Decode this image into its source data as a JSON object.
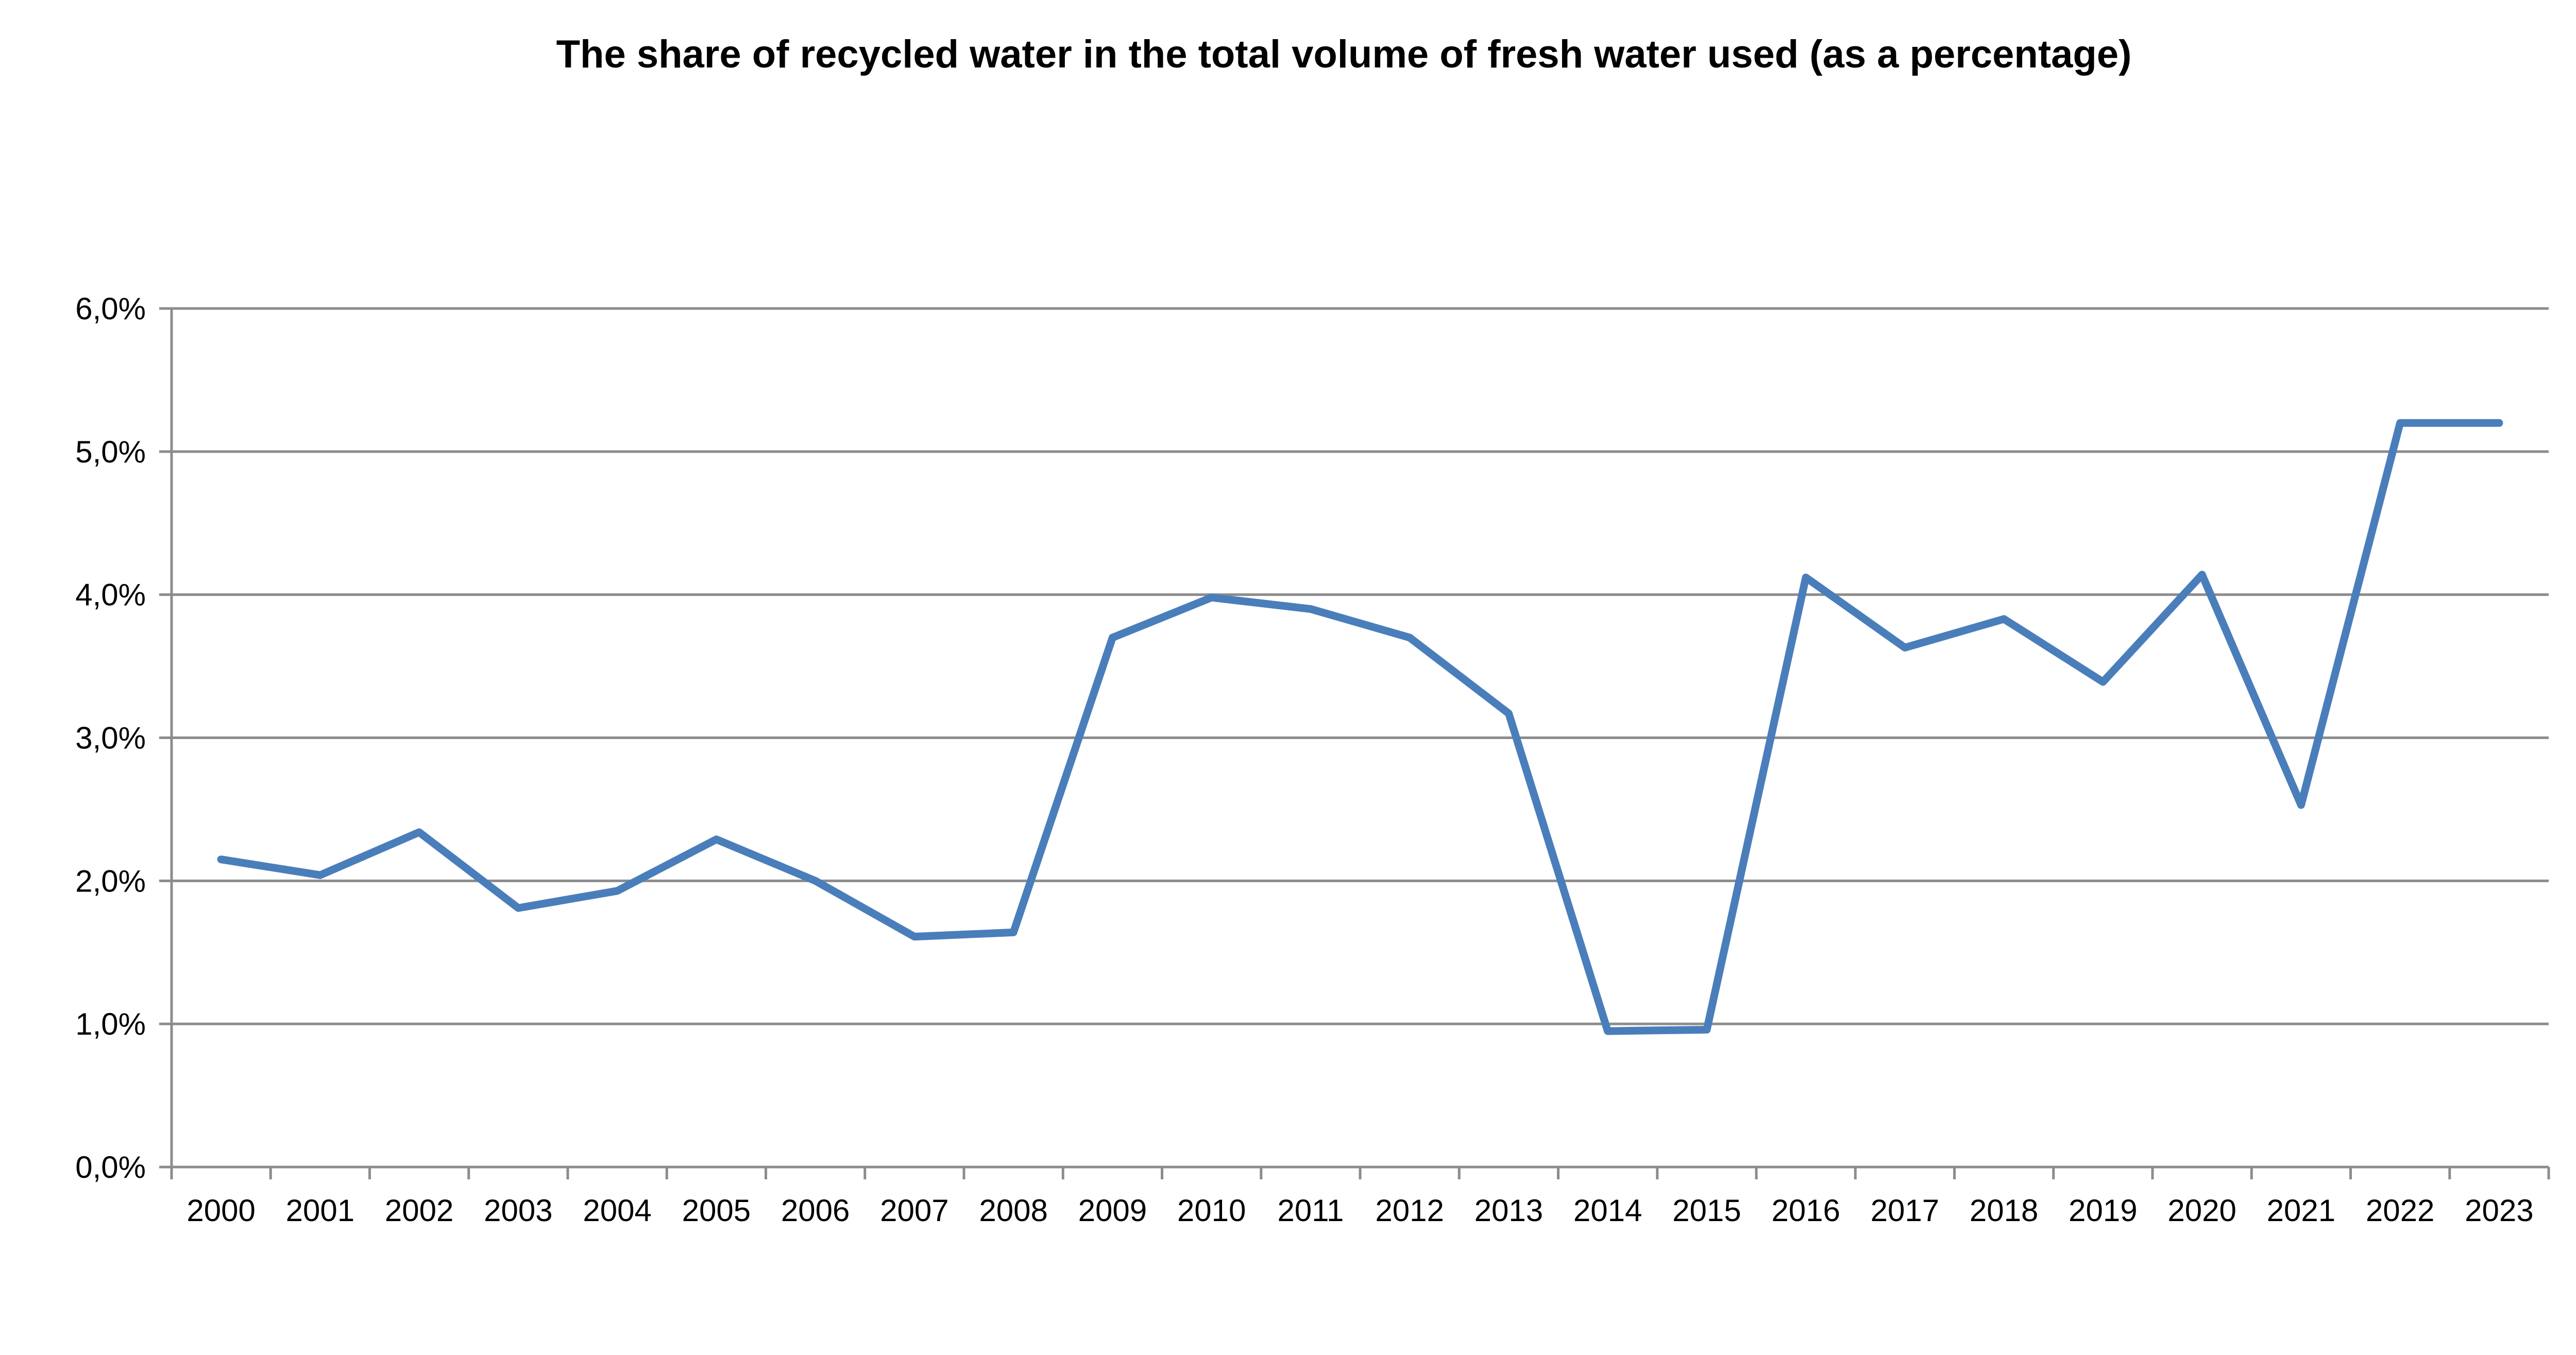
{
  "chart_data": {
    "type": "line",
    "title": "The share of recycled water in the total volume of fresh water used (as a percentage)",
    "xlabel": "",
    "ylabel": "",
    "ylim": [
      0,
      6
    ],
    "yticks": [
      0,
      1,
      2,
      3,
      4,
      5,
      6
    ],
    "ytick_labels": [
      "0,0%",
      "1,0%",
      "2,0%",
      "3,0%",
      "4,0%",
      "5,0%",
      "6,0%"
    ],
    "grid": true,
    "legend": "none",
    "line_color": "#4a7ebb",
    "categories": [
      "2000",
      "2001",
      "2002",
      "2003",
      "2004",
      "2005",
      "2006",
      "2007",
      "2008",
      "2009",
      "2010",
      "2011",
      "2012",
      "2013",
      "2014",
      "2015",
      "2016",
      "2017",
      "2018",
      "2019",
      "2020",
      "2021",
      "2022",
      "2023"
    ],
    "series": [
      {
        "values": [
          2.15,
          2.04,
          2.34,
          1.81,
          1.93,
          2.29,
          2.0,
          1.61,
          1.64,
          3.7,
          3.98,
          3.9,
          3.7,
          3.17,
          0.95,
          0.96,
          4.12,
          3.63,
          3.83,
          3.39,
          4.14,
          2.53,
          5.2,
          5.2
        ]
      }
    ]
  }
}
